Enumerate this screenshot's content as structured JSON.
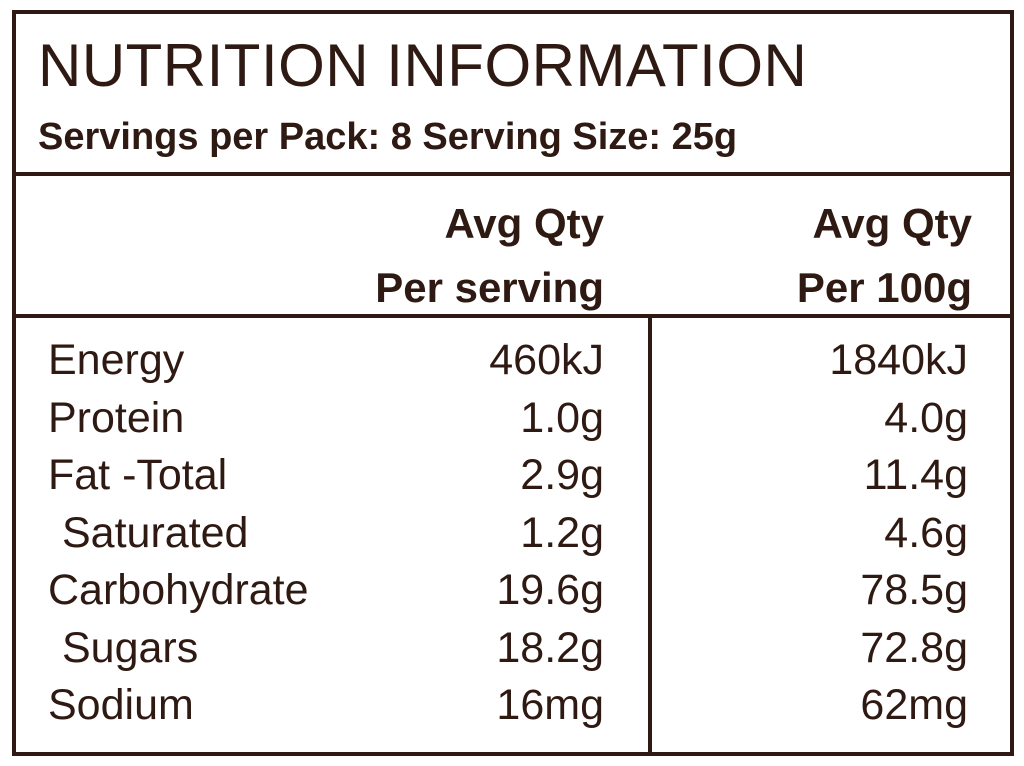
{
  "panel": {
    "title": "NUTRITION INFORMATION",
    "subtitle": "Servings per Pack: 8  Serving Size: 25g"
  },
  "columns": {
    "per_serving": {
      "line1": "Avg Qty",
      "line2": "Per serving"
    },
    "per_100g": {
      "line1": "Avg Qty",
      "line2": "Per 100g"
    }
  },
  "rows": [
    {
      "label": "Energy",
      "per_serving": "460kJ",
      "per_100g": "1840kJ"
    },
    {
      "label": "Protein",
      "per_serving": "1.0g",
      "per_100g": "4.0g"
    },
    {
      "label": "Fat -Total",
      "per_serving": "2.9g",
      "per_100g": "11.4g"
    },
    {
      "label": "Saturated",
      "per_serving": "1.2g",
      "per_100g": "4.6g"
    },
    {
      "label": "Carbohydrate",
      "per_serving": "19.6g",
      "per_100g": "78.5g"
    },
    {
      "label": "Sugars",
      "per_serving": "18.2g",
      "per_100g": "72.8g"
    },
    {
      "label": "Sodium",
      "per_serving": "16mg",
      "per_100g": "62mg"
    }
  ],
  "colors": {
    "ink": "#2e1a12",
    "background": "#ffffff"
  }
}
